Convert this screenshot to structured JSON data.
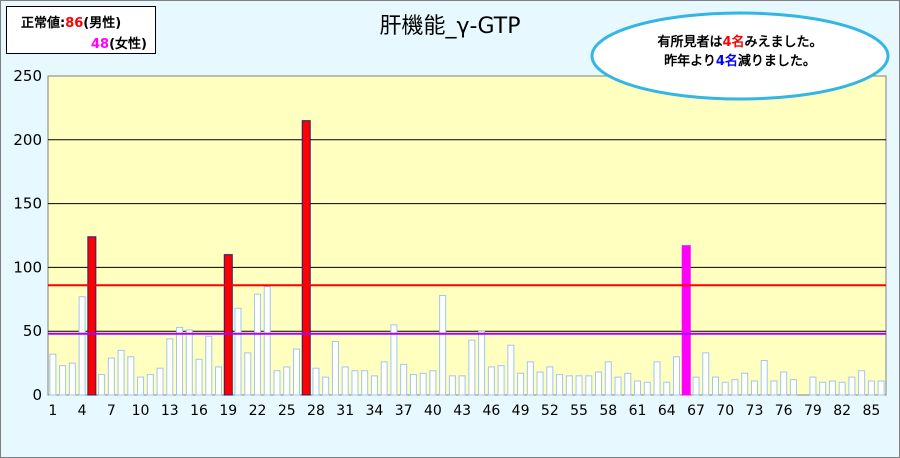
{
  "normal_box": {
    "male_label": "正常値:",
    "male_value": "86",
    "male_sex": "(男性)",
    "female_value": "48",
    "female_sex": "(女性)"
  },
  "title": "肝機能_γ-GTP",
  "callout": {
    "line1_prefix": "有所見者は",
    "line1_value": "4名",
    "line1_suffix": "みえました。",
    "line2_prefix": "昨年より",
    "line2_value": "4名",
    "line2_suffix": "減りました。"
  },
  "colors": {
    "plot_bg": "#ffffc0",
    "frame_bg": "#e7f9ff",
    "bar_normal": "#ffffff",
    "bar_normal_edge": "#9ec6f0",
    "bar_male_flag": "#ff0000",
    "bar_female_flag": "#ff00ff",
    "male_line": "#ff0000",
    "female_line": "#aa00ff",
    "callout_edge": "#33b5e5"
  },
  "chart_data": {
    "type": "bar",
    "title": "肝機能_γ-GTP",
    "ylim": [
      0,
      250
    ],
    "y_ticks": [
      0,
      50,
      100,
      150,
      200,
      250
    ],
    "x_tick_labels": [
      "1",
      "4",
      "7",
      "10",
      "13",
      "16",
      "19",
      "22",
      "25",
      "28",
      "31",
      "34",
      "37",
      "40",
      "43",
      "46",
      "49",
      "52",
      "55",
      "58",
      "61",
      "64",
      "67",
      "70",
      "73",
      "76",
      "79",
      "82",
      "85"
    ],
    "x_tick_positions": [
      1,
      4,
      7,
      10,
      13,
      16,
      19,
      22,
      25,
      28,
      31,
      34,
      37,
      40,
      43,
      46,
      49,
      52,
      55,
      58,
      61,
      64,
      67,
      70,
      73,
      76,
      79,
      82,
      85
    ],
    "categories": [
      1,
      2,
      3,
      4,
      5,
      6,
      7,
      8,
      9,
      10,
      11,
      12,
      13,
      14,
      15,
      16,
      17,
      18,
      19,
      20,
      21,
      22,
      23,
      24,
      25,
      26,
      27,
      28,
      29,
      30,
      31,
      32,
      33,
      34,
      35,
      36,
      37,
      38,
      39,
      40,
      41,
      42,
      43,
      44,
      45,
      46,
      47,
      48,
      49,
      50,
      51,
      52,
      53,
      54,
      55,
      56,
      57,
      58,
      59,
      60,
      61,
      62,
      63,
      64,
      65,
      66,
      67,
      68,
      69,
      70,
      71,
      72,
      73,
      74,
      75,
      76,
      77,
      78,
      79,
      80,
      81,
      82,
      83,
      84,
      85,
      86
    ],
    "values": [
      32,
      23,
      25,
      77,
      124,
      16,
      29,
      35,
      30,
      14,
      16,
      21,
      44,
      53,
      51,
      28,
      46,
      22,
      110,
      68,
      33,
      79,
      85,
      19,
      22,
      36,
      215,
      21,
      14,
      42,
      22,
      19,
      19,
      15,
      26,
      55,
      24,
      16,
      17,
      19,
      78,
      15,
      15,
      43,
      50,
      22,
      23,
      39,
      17,
      26,
      18,
      22,
      16,
      15,
      15,
      15,
      18,
      26,
      14,
      17,
      11,
      10,
      26,
      10,
      30,
      117,
      14,
      33,
      14,
      10,
      12,
      17,
      11,
      27,
      11,
      18,
      12,
      0,
      14,
      10,
      11,
      10,
      14,
      19,
      11,
      11
    ],
    "flagged": {
      "male": [
        5,
        19,
        27
      ],
      "female": [
        66
      ]
    },
    "reference_lines": [
      {
        "value": 86,
        "color": "#ff0000"
      },
      {
        "value": 48,
        "color": "#aa00ff"
      }
    ],
    "grid": true
  }
}
